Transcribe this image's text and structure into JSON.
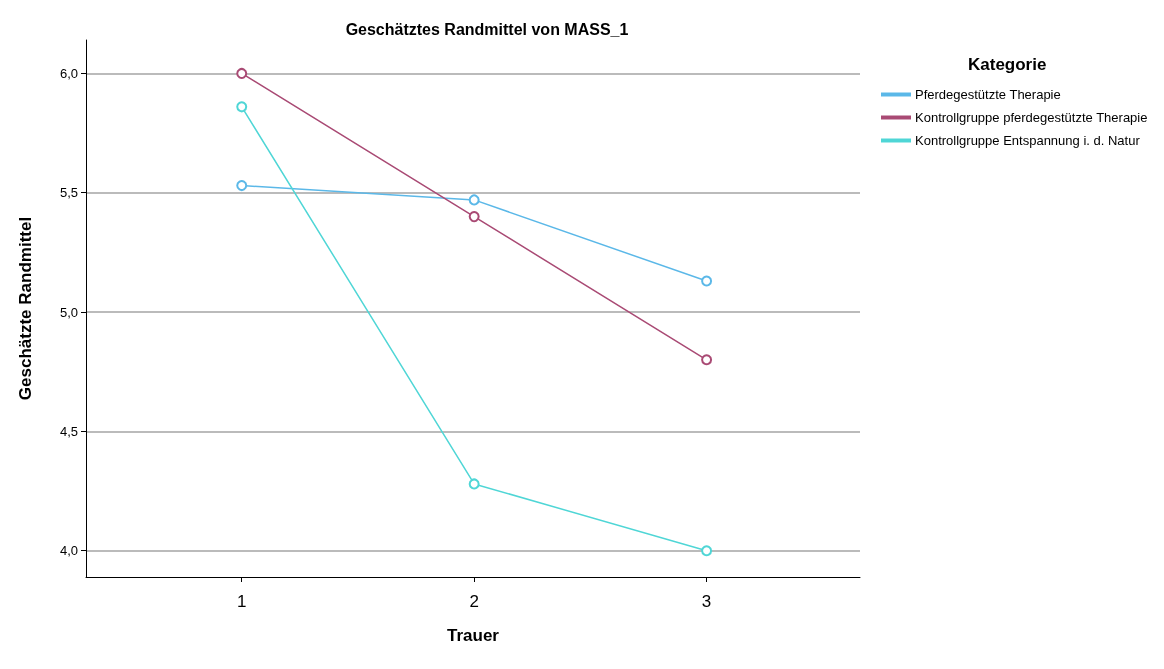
{
  "chart_data": {
    "type": "line",
    "title": "Geschätztes Randmittel von MASS_1",
    "xlabel": "Trauer",
    "ylabel": "Geschätzte Randmittel",
    "legend_title": "Kategorie",
    "x": [
      1,
      2,
      3
    ],
    "xlim": [
      0.33,
      3.66
    ],
    "xticks": [
      1,
      2,
      3
    ],
    "ylim": [
      3.89,
      6.14
    ],
    "yticks": [
      {
        "value": 4,
        "label": "4,0"
      },
      {
        "value": 4.5,
        "label": "4,5"
      },
      {
        "value": 5,
        "label": "5,0"
      },
      {
        "value": 5.5,
        "label": "5,5"
      },
      {
        "value": 6,
        "label": "6,0"
      }
    ],
    "grid": "y",
    "legend": "right",
    "marker": "circle",
    "line_style": "solid",
    "series": [
      {
        "name": "Pferdegestützte Therapie",
        "color": "#5bb8e8",
        "values": [
          5.53,
          5.47,
          5.13
        ]
      },
      {
        "name": "Kontrollgruppe pferdegestützte Therapie",
        "color": "#a94a74",
        "values": [
          6.0,
          5.4,
          4.8
        ]
      },
      {
        "name": "Kontrollgruppe Entspannung i. d. Natur",
        "color": "#4fd6d6",
        "values": [
          5.86,
          4.28,
          4.0
        ]
      }
    ]
  }
}
